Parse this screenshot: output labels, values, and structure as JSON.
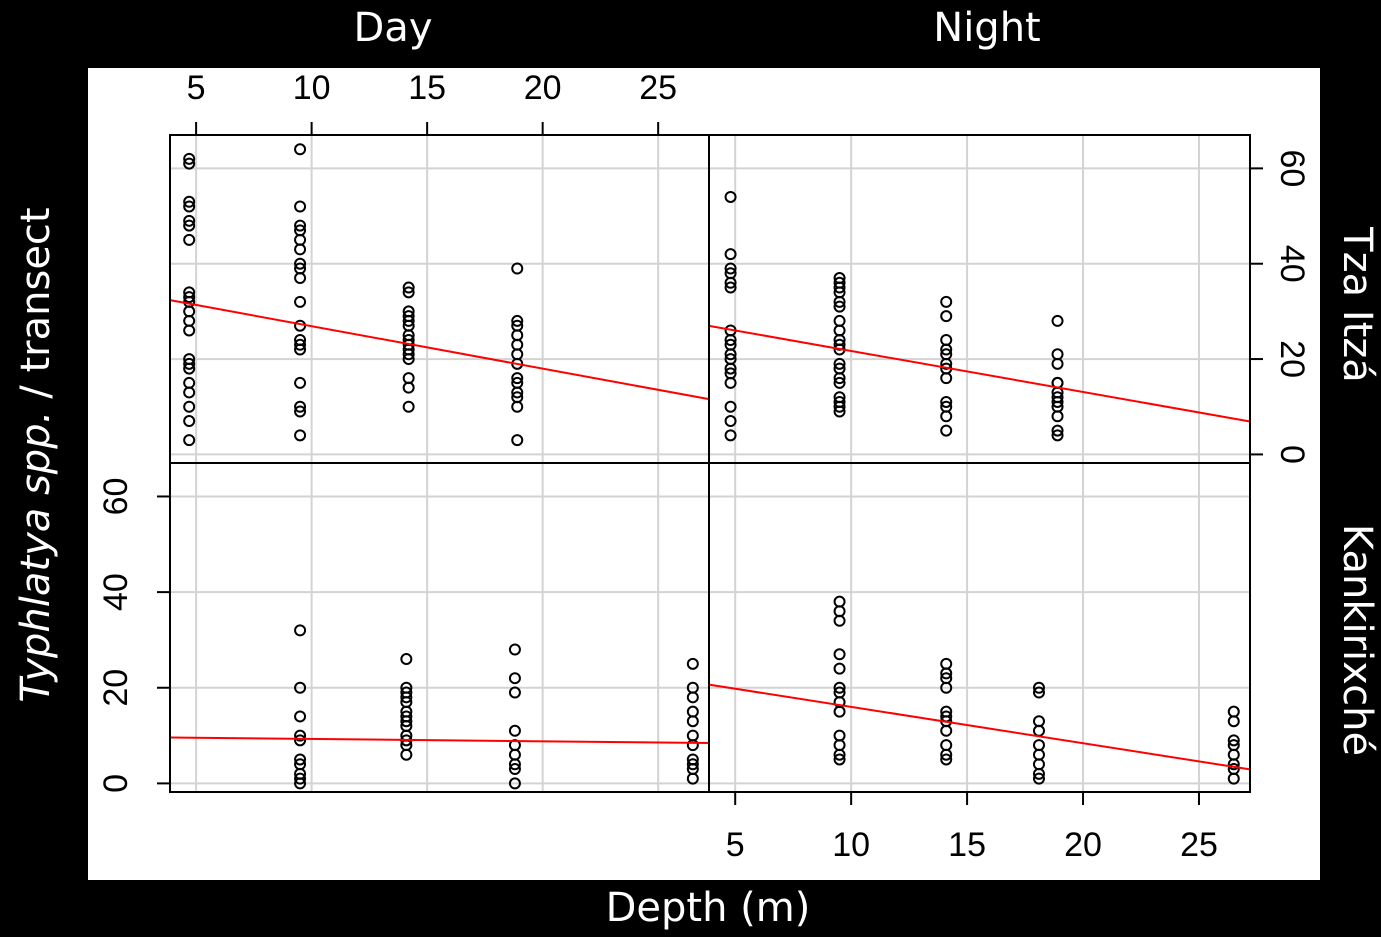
{
  "chart_data": {
    "type": "scatter",
    "columns": [
      "Day",
      "Night"
    ],
    "rows": [
      "Tza Itzá",
      "Kankirixché"
    ],
    "xlabel": "Depth (m)",
    "ylabel_italic": "Typhlatya spp.",
    "ylabel_rest": "/ transect",
    "xlim": [
      3.87,
      27.2
    ],
    "ylim": [
      -1.8,
      67
    ],
    "xticks": [
      5,
      10,
      15,
      20,
      25
    ],
    "yticks": [
      0,
      20,
      40,
      60
    ],
    "grid": true,
    "color": "#000000",
    "fit_color": "#ff0000",
    "panels": [
      {
        "x": [
          4.7,
          4.7,
          4.7,
          4.7,
          4.7,
          4.7,
          4.7,
          4.7,
          4.7,
          4.7,
          4.7,
          4.7,
          4.7,
          4.7,
          4.7,
          4.7,
          4.7,
          4.7,
          4.7,
          4.7,
          4.7,
          9.5,
          9.5,
          9.5,
          9.5,
          9.5,
          9.5,
          9.5,
          9.5,
          9.5,
          9.5,
          9.5,
          9.5,
          9.5,
          9.5,
          9.5,
          9.5,
          9.5,
          9.5,
          14.2,
          14.2,
          14.2,
          14.2,
          14.2,
          14.2,
          14.2,
          14.2,
          14.2,
          14.2,
          14.2,
          14.2,
          14.2,
          14.2,
          14.2,
          18.9,
          18.9,
          18.9,
          18.9,
          18.9,
          18.9,
          18.9,
          18.9,
          18.9,
          18.9,
          18.9,
          18.9,
          18.9
        ],
        "values": [
          62,
          61,
          53,
          52,
          49,
          48,
          45,
          34,
          33,
          32,
          30,
          28,
          26,
          20,
          19,
          18,
          15,
          13,
          10,
          7,
          3,
          64,
          52,
          48,
          47,
          45,
          43,
          40,
          39,
          37,
          32,
          27,
          24,
          23,
          22,
          15,
          10,
          9,
          4,
          35,
          34,
          30,
          29,
          28,
          27,
          25,
          24,
          23,
          22,
          21,
          20,
          16,
          14,
          10,
          39,
          28,
          27,
          25,
          23,
          21,
          19,
          16,
          15,
          13,
          12,
          10,
          3
        ],
        "fit": {
          "intercept": 35.8,
          "slope": -0.89
        }
      },
      {
        "x": [
          4.8,
          4.8,
          4.8,
          4.8,
          4.8,
          4.8,
          4.8,
          4.8,
          4.8,
          4.8,
          4.8,
          4.8,
          4.8,
          4.8,
          4.8,
          4.8,
          4.8,
          9.5,
          9.5,
          9.5,
          9.5,
          9.5,
          9.5,
          9.5,
          9.5,
          9.5,
          9.5,
          9.5,
          9.5,
          9.5,
          9.5,
          9.5,
          9.5,
          9.5,
          9.5,
          9.5,
          14.1,
          14.1,
          14.1,
          14.1,
          14.1,
          14.1,
          14.1,
          14.1,
          14.1,
          14.1,
          14.1,
          14.1,
          18.9,
          18.9,
          18.9,
          18.9,
          18.9,
          18.9,
          18.9,
          18.9,
          18.9,
          18.9,
          18.9,
          18.9
        ],
        "values": [
          54,
          42,
          39,
          38,
          36,
          35,
          26,
          24,
          23,
          21,
          20,
          18,
          17,
          15,
          10,
          7,
          4,
          37,
          36,
          35,
          34,
          32,
          31,
          28,
          26,
          24,
          23,
          22,
          19,
          18,
          16,
          15,
          12,
          11,
          10,
          9,
          32,
          29,
          24,
          22,
          21,
          19,
          18,
          16,
          11,
          10,
          8,
          5,
          28,
          21,
          19,
          15,
          15,
          13,
          12,
          11,
          10,
          8,
          5,
          4
        ],
        "fit": {
          "intercept": 30.3,
          "slope": -0.86
        }
      },
      {
        "x": [
          9.5,
          9.5,
          9.5,
          9.5,
          9.5,
          9.5,
          9.5,
          9.5,
          9.5,
          9.5,
          14.1,
          14.1,
          14.1,
          14.1,
          14.1,
          14.1,
          14.1,
          14.1,
          14.1,
          14.1,
          14.1,
          14.1,
          14.1,
          18.8,
          18.8,
          18.8,
          18.8,
          18.8,
          18.8,
          18.8,
          18.8,
          18.8,
          26.5,
          26.5,
          26.5,
          26.5,
          26.5,
          26.5,
          26.5,
          26.5,
          26.5,
          26.5,
          26.5
        ],
        "values": [
          32,
          20,
          14,
          10,
          9,
          5,
          4,
          2,
          1,
          0,
          26,
          20,
          19,
          18,
          17,
          15,
          14,
          13,
          12,
          10,
          9,
          8,
          6,
          28,
          22,
          19,
          11,
          8,
          6,
          4,
          3,
          0,
          25,
          20,
          18,
          15,
          13,
          10,
          8,
          5,
          4,
          3,
          1
        ],
        "fit": {
          "intercept": 9.8,
          "slope": -0.05
        }
      },
      {
        "x": [
          9.5,
          9.5,
          9.5,
          9.5,
          9.5,
          9.5,
          9.5,
          9.5,
          9.5,
          9.5,
          9.5,
          9.5,
          9.5,
          14.1,
          14.1,
          14.1,
          14.1,
          14.1,
          14.1,
          14.1,
          14.1,
          14.1,
          14.1,
          14.1,
          18.1,
          18.1,
          18.1,
          18.1,
          18.1,
          18.1,
          18.1,
          18.1,
          18.1,
          26.5,
          26.5,
          26.5,
          26.5,
          26.5,
          26.5,
          26.5,
          26.5
        ],
        "values": [
          38,
          36,
          34,
          27,
          24,
          20,
          19,
          17,
          15,
          10,
          8,
          6,
          5,
          25,
          23,
          22,
          20,
          15,
          14,
          13,
          11,
          8,
          6,
          5,
          20,
          19,
          13,
          11,
          8,
          6,
          4,
          2,
          1,
          15,
          13,
          9,
          8,
          6,
          4,
          3,
          1
        ],
        "fit": {
          "intercept": 23.6,
          "slope": -0.76
        }
      }
    ]
  }
}
